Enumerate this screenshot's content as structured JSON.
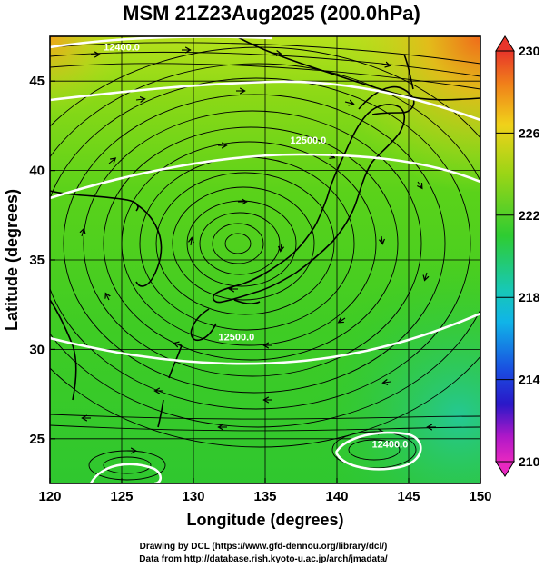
{
  "title": "MSM 21Z23Aug2025 (200.0hPa)",
  "x_axis": {
    "label": "Longitude (degrees)",
    "range": [
      120,
      150
    ],
    "ticks": [
      "120",
      "125",
      "130",
      "135",
      "140",
      "145",
      "150"
    ]
  },
  "y_axis": {
    "label": "Latitude  (degrees)",
    "range": [
      22.5,
      47.5
    ],
    "ticks": [
      "25",
      "30",
      "35",
      "40",
      "45"
    ]
  },
  "colorbar": {
    "range": [
      210,
      230
    ],
    "ticks": [
      "230",
      "226",
      "222",
      "218",
      "214",
      "210"
    ]
  },
  "contours": [
    {
      "value": "12500.0",
      "lon": 122,
      "lat": 47.7
    },
    {
      "value": "12400.0",
      "lon": 125,
      "lat": 46.7
    },
    {
      "value": "12500.0",
      "lon": 138,
      "lat": 41.5
    },
    {
      "value": "12500.0",
      "lon": 133,
      "lat": 30.5
    },
    {
      "value": "12400.0",
      "lon": 143.7,
      "lat": 24.5
    }
  ],
  "credits": {
    "line1": "Drawing by DCL (https://www.gfd-dennou.org/library/dcl/)",
    "line2": "Data from http://database.rish.kyoto-u.ac.jp/arch/jmadata/"
  }
}
